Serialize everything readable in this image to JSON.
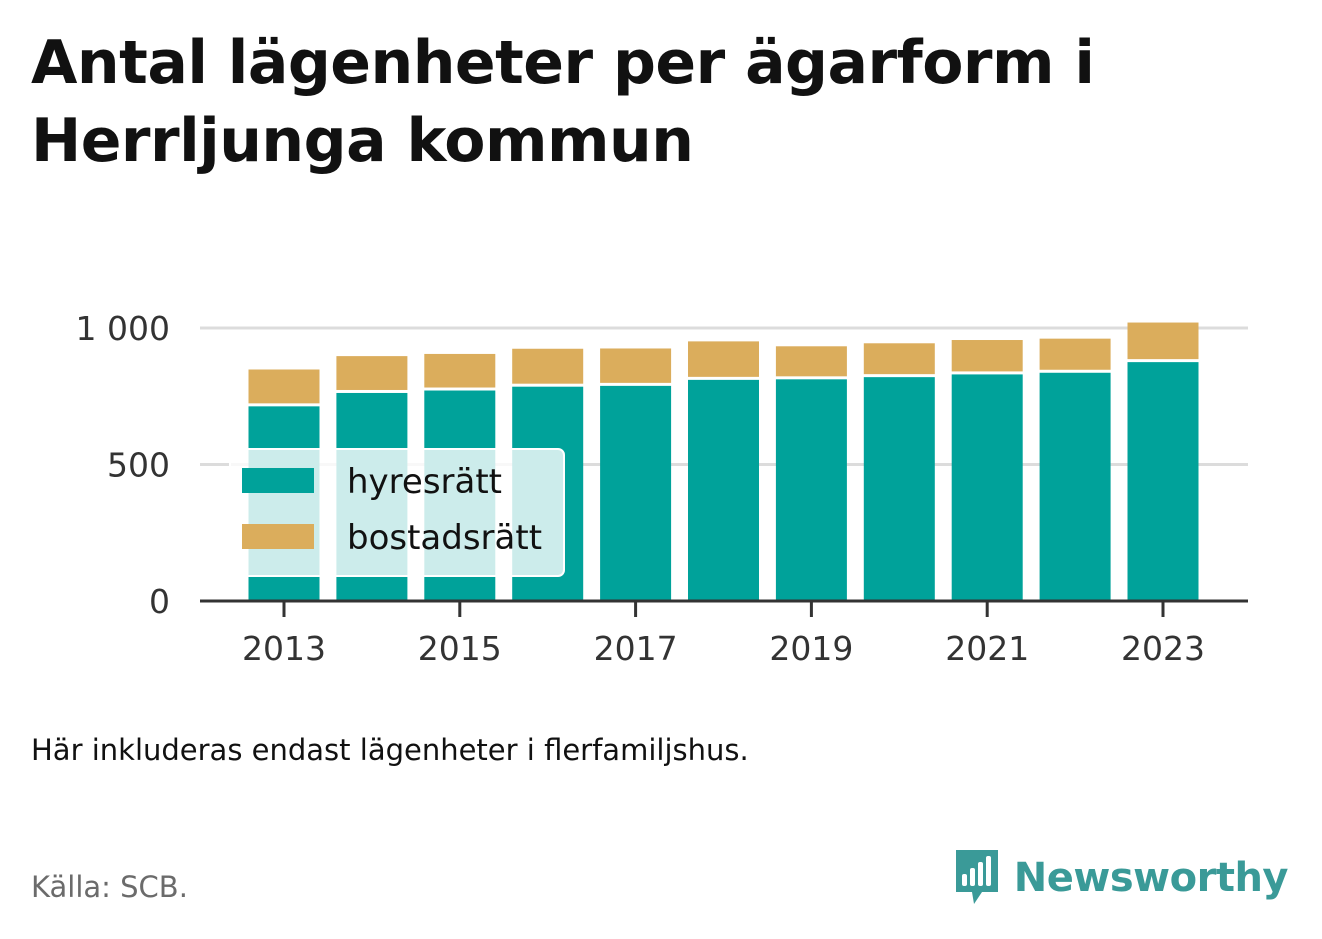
{
  "title": "Antal lägenheter per ägarform i Herrljunga kommun",
  "note": "Här inkluderas endast lägenheter i flerfamiljshus.",
  "source": "Källa: SCB.",
  "brand": {
    "name": "Newsworthy",
    "icon": "newsworthy-logo-icon"
  },
  "colors": {
    "hyresratt": "#00a29a",
    "bostadsratt": "#dbad5c",
    "grid": "#dcdcdc",
    "axis": "#333333"
  },
  "chart_data": {
    "type": "bar",
    "stacked": true,
    "categories": [
      2013,
      2014,
      2015,
      2016,
      2017,
      2018,
      2019,
      2020,
      2021,
      2022,
      2023
    ],
    "x_tick_labels": [
      "2013",
      "2015",
      "2017",
      "2019",
      "2021",
      "2023"
    ],
    "y_ticks": [
      0,
      500,
      1000
    ],
    "y_tick_labels": [
      "0",
      "500",
      "1 000"
    ],
    "ylim": [
      0,
      1000
    ],
    "grid": true,
    "legend_position": "left",
    "series": [
      {
        "name": "hyresrätt",
        "color": "#00a29a",
        "values": [
          713,
          762,
          771,
          785,
          788,
          810,
          812,
          820,
          830,
          836,
          875
        ]
      },
      {
        "name": "bostadsrätt",
        "color": "#dbad5c",
        "values": [
          135,
          135,
          134,
          139,
          137,
          141,
          121,
          124,
          126,
          125,
          145
        ]
      }
    ]
  }
}
